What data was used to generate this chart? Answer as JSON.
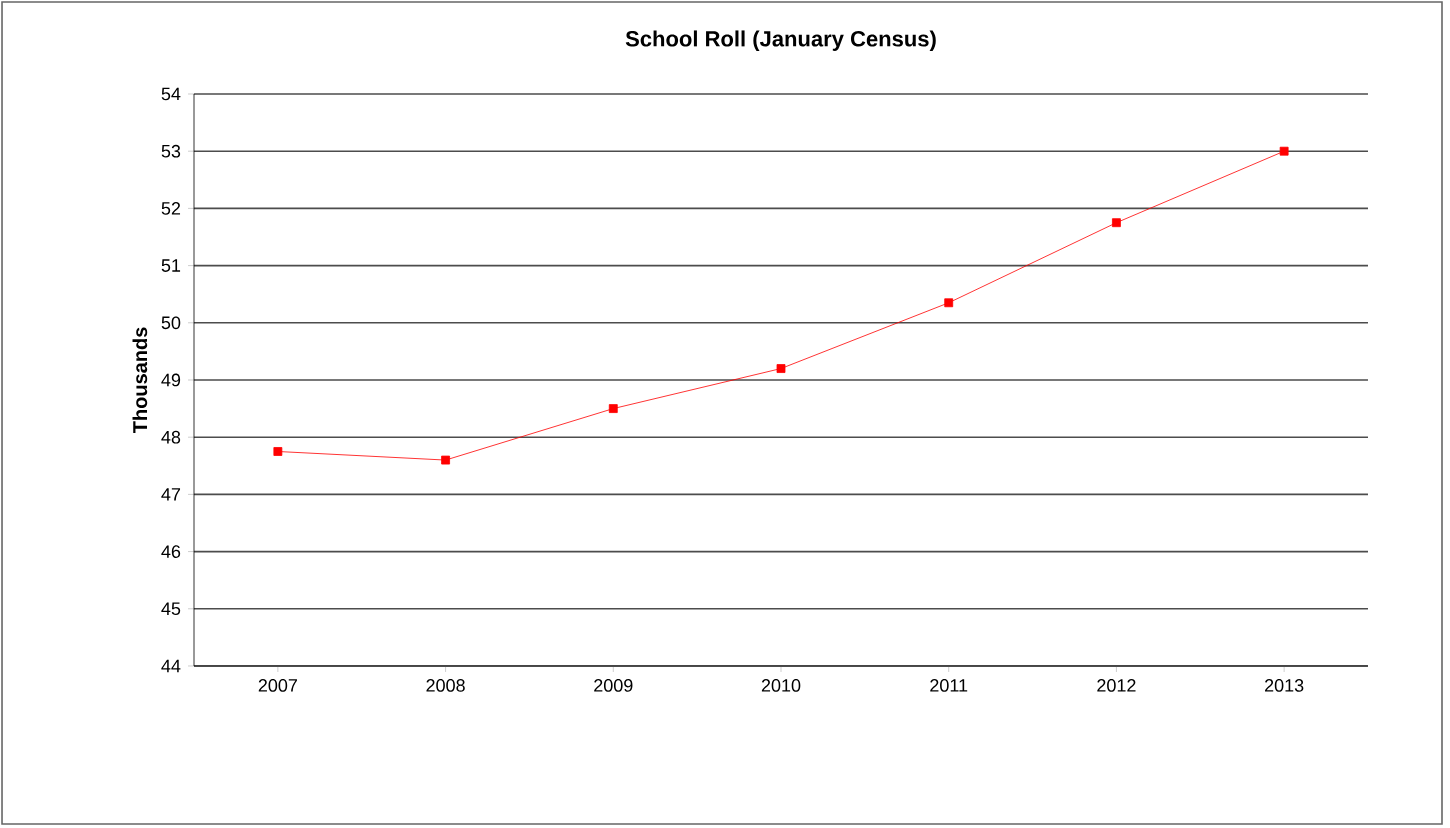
{
  "chart_data": {
    "type": "line",
    "title": "School Roll (January Census)",
    "ylabel": "Thousands",
    "categories": [
      "2007",
      "2008",
      "2009",
      "2010",
      "2011",
      "2012",
      "2013"
    ],
    "series": [
      {
        "color": "#ff0000",
        "values": [
          47.75,
          47.6,
          48.5,
          49.2,
          50.35,
          51.75,
          53.0
        ]
      }
    ],
    "ylim": [
      44,
      54
    ],
    "yticks": [
      44,
      45,
      46,
      47,
      48,
      49,
      50,
      51,
      52,
      53,
      54
    ],
    "grid": "y",
    "marker": "square",
    "line_style": "solid"
  }
}
